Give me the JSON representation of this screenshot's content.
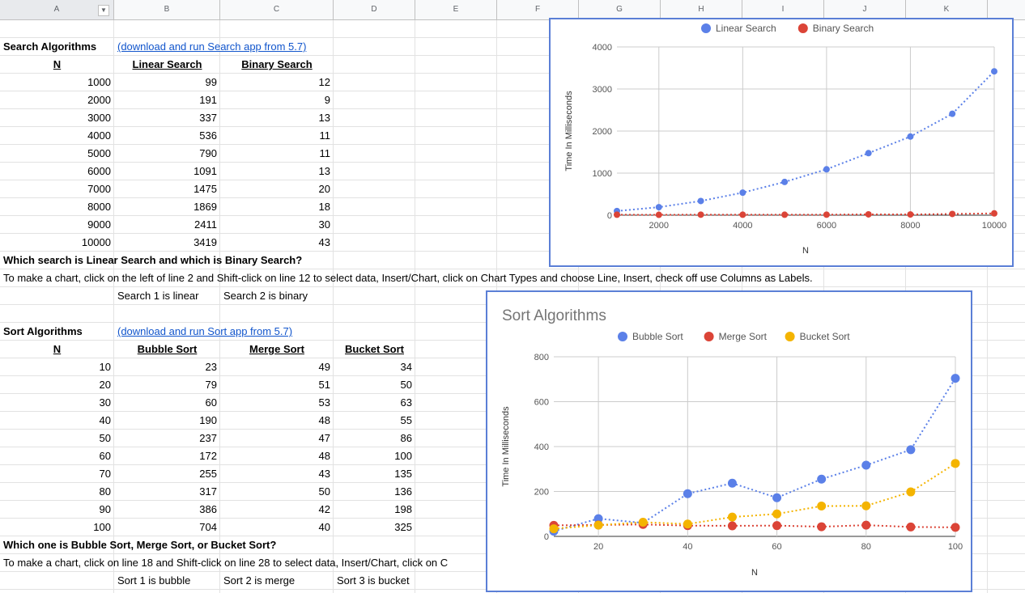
{
  "columns": [
    "A",
    "B",
    "C",
    "D",
    "E",
    "F",
    "G",
    "H",
    "I",
    "J",
    "K"
  ],
  "search": {
    "title": "Search Algorithms",
    "link": "(download and run Search app from 5.7)",
    "headers": [
      "N",
      "Linear Search",
      "Binary Search"
    ],
    "rows": [
      [
        "1000",
        "99",
        "12"
      ],
      [
        "2000",
        "191",
        "9"
      ],
      [
        "3000",
        "337",
        "13"
      ],
      [
        "4000",
        "536",
        "11"
      ],
      [
        "5000",
        "790",
        "11"
      ],
      [
        "6000",
        "1091",
        "13"
      ],
      [
        "7000",
        "1475",
        "20"
      ],
      [
        "8000",
        "1869",
        "18"
      ],
      [
        "9000",
        "2411",
        "30"
      ],
      [
        "10000",
        "3419",
        "43"
      ]
    ],
    "question": "Which search is Linear Search and which is Binary Search?",
    "instructions": "To make a chart, click on the left of line 2 and Shift-click on line 12 to select data, Insert/Chart, click on Chart Types and choose Line, Insert, check off use Columns as Labels.",
    "answers": [
      "Search 1 is linear",
      "Search 2 is binary"
    ]
  },
  "sort": {
    "title": "Sort Algorithms",
    "link": "(download and run Sort app from 5.7)",
    "headers": [
      "N",
      "Bubble Sort",
      "Merge Sort",
      "Bucket Sort"
    ],
    "rows": [
      [
        "10",
        "23",
        "49",
        "34"
      ],
      [
        "20",
        "79",
        "51",
        "50"
      ],
      [
        "30",
        "60",
        "53",
        "63"
      ],
      [
        "40",
        "190",
        "48",
        "55"
      ],
      [
        "50",
        "237",
        "47",
        "86"
      ],
      [
        "60",
        "172",
        "48",
        "100"
      ],
      [
        "70",
        "255",
        "43",
        "135"
      ],
      [
        "80",
        "317",
        "50",
        "136"
      ],
      [
        "90",
        "386",
        "42",
        "198"
      ],
      [
        "100",
        "704",
        "40",
        "325"
      ]
    ],
    "question": "Which one is Bubble Sort, Merge Sort, or Bucket Sort?",
    "instructions": "To make a chart, click on line 18 and Shift-click on line 28 to select data, Insert/Chart, click on C",
    "answers": [
      "Sort 1 is bubble",
      "Sort 2 is merge",
      "Sort 3 is bucket"
    ]
  },
  "chart_data": [
    {
      "type": "line",
      "title": "",
      "xlabel": "N",
      "ylabel": "Time In Milliseconds",
      "x": [
        1000,
        2000,
        3000,
        4000,
        5000,
        6000,
        7000,
        8000,
        9000,
        10000
      ],
      "xlim": [
        1000,
        10000
      ],
      "xticks": [
        "2000",
        "4000",
        "6000",
        "8000",
        "10000"
      ],
      "ylim": [
        0,
        4000
      ],
      "yticks": [
        "0",
        "1000",
        "2000",
        "3000",
        "4000"
      ],
      "legend": "top",
      "grid": true,
      "series": [
        {
          "name": "Linear Search",
          "color": "#5b80e8",
          "values": [
            99,
            191,
            337,
            536,
            790,
            1091,
            1475,
            1869,
            2411,
            3419
          ]
        },
        {
          "name": "Binary Search",
          "color": "#db4437",
          "values": [
            12,
            9,
            13,
            11,
            11,
            13,
            20,
            18,
            30,
            43
          ]
        }
      ]
    },
    {
      "type": "line",
      "title": "Sort Algorithms",
      "xlabel": "N",
      "ylabel": "Time In Milliseconds",
      "x": [
        10,
        20,
        30,
        40,
        50,
        60,
        70,
        80,
        90,
        100
      ],
      "xlim": [
        10,
        100
      ],
      "xticks": [
        "20",
        "40",
        "60",
        "80",
        "100"
      ],
      "ylim": [
        0,
        800
      ],
      "yticks": [
        "0",
        "200",
        "400",
        "600",
        "800"
      ],
      "legend": "top",
      "grid": true,
      "series": [
        {
          "name": "Bubble Sort",
          "color": "#5b80e8",
          "values": [
            23,
            79,
            60,
            190,
            237,
            172,
            255,
            317,
            386,
            704
          ]
        },
        {
          "name": "Merge Sort",
          "color": "#db4437",
          "values": [
            49,
            51,
            53,
            48,
            47,
            48,
            43,
            50,
            42,
            40
          ]
        },
        {
          "name": "Bucket Sort",
          "color": "#f4b400",
          "values": [
            34,
            50,
            63,
            55,
            86,
            100,
            135,
            136,
            198,
            325
          ]
        }
      ]
    }
  ]
}
